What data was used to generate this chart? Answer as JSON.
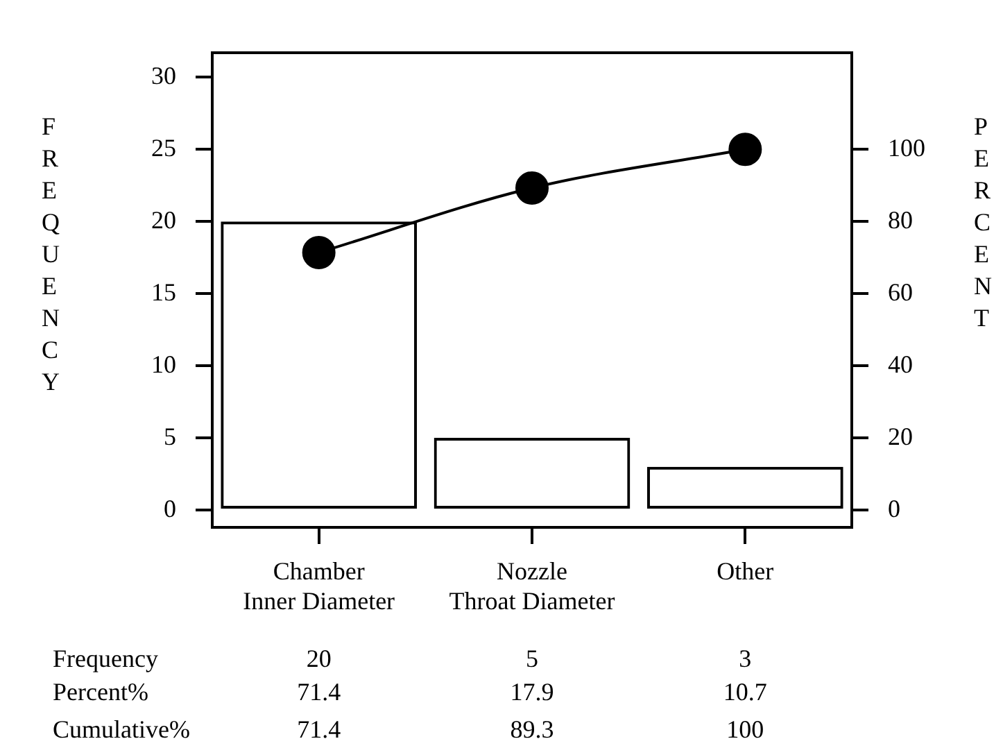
{
  "chart_data": {
    "type": "bar",
    "ylabel": "FREQUENCY",
    "y2label": "PERCENT",
    "categories": [
      "Chamber Inner Diameter",
      "Nozzle Throat Diameter",
      "Other"
    ],
    "series": [
      {
        "color": "#000000",
        "values": [
          20,
          5,
          3
        ]
      },
      {
        "type": "line",
        "axis": "y2",
        "color": "#000000",
        "values": [
          71.4,
          89.3,
          100
        ]
      }
    ],
    "annotations": [
      "Frequency",
      "Percent%",
      "Cumulative%",
      "71.4",
      "17.9",
      "10.7"
    ],
    "data_labels": true,
    "ylim": [
      -1.2,
      31.7
    ],
    "yticks": [
      0,
      5,
      10,
      15,
      20,
      25,
      30
    ],
    "y2lim": [
      -4.8,
      126.8
    ],
    "y2ticks": [
      0,
      20,
      40,
      60,
      80,
      100
    ],
    "grid": false,
    "legend": false,
    "marker": "circle",
    "line_style": "solid"
  }
}
